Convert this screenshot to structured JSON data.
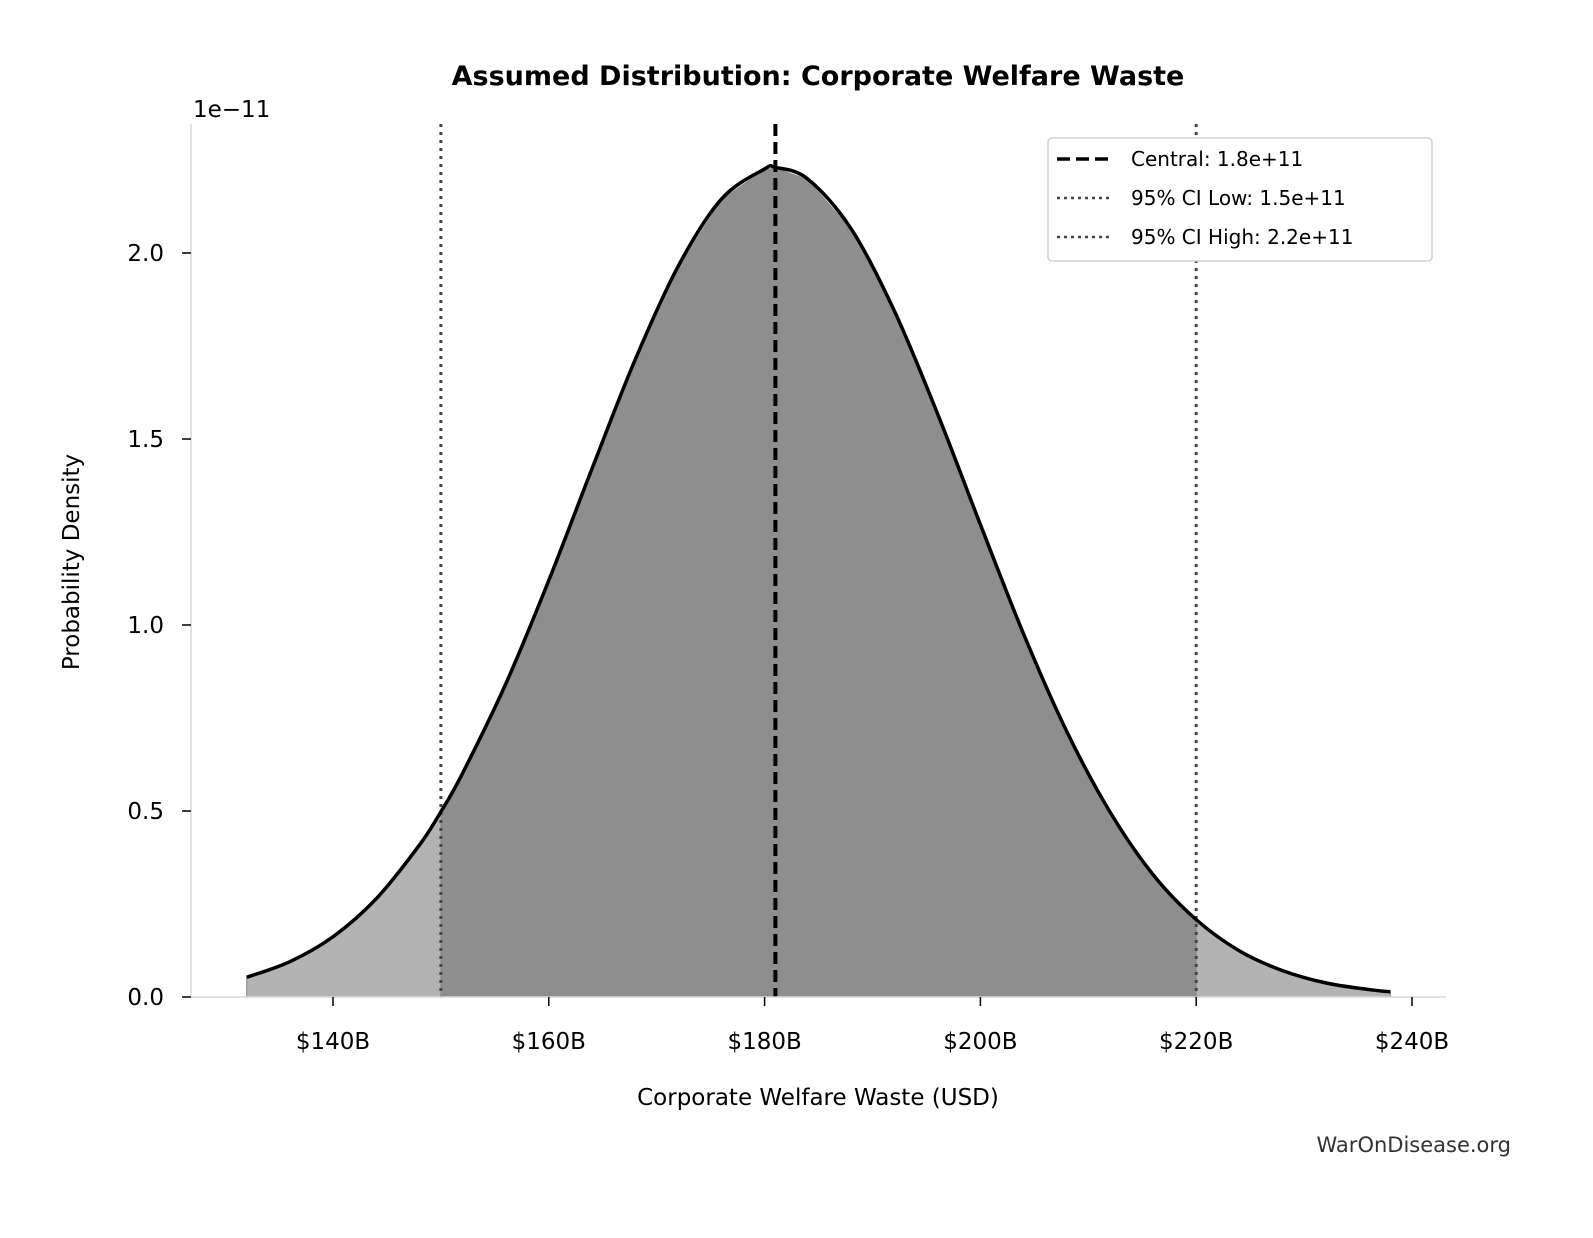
{
  "chart_data": {
    "type": "area",
    "title": "Assumed Distribution: Corporate Welfare Waste",
    "xlabel": "Corporate Welfare Waste (USD)",
    "ylabel": "Probability Density",
    "y_offset_label": "1e−11",
    "xlim": [
      128,
      244
    ],
    "ylim": [
      0,
      2.34
    ],
    "x_unit": "billion USD",
    "y_unit": "1e-11",
    "x_ticks": [
      140,
      160,
      180,
      200,
      220,
      240
    ],
    "x_tick_labels": [
      "$140B",
      "$160B",
      "$180B",
      "$200B",
      "$220B",
      "$240B"
    ],
    "y_ticks": [
      0,
      0.5,
      1.0,
      1.5,
      2.0
    ],
    "y_tick_labels": [
      "0.0",
      "0.5",
      "1.0",
      "1.5",
      "2.0"
    ],
    "grid": false,
    "legend_position": "top-right",
    "x": [
      132,
      136,
      140,
      144,
      148,
      150,
      152,
      156,
      160,
      164,
      168,
      172,
      176,
      180,
      181,
      184,
      188,
      192,
      196,
      200,
      204,
      208,
      212,
      216,
      220,
      224,
      228,
      232,
      236,
      238
    ],
    "y": [
      0.053,
      0.095,
      0.162,
      0.264,
      0.408,
      0.498,
      0.601,
      0.841,
      1.12,
      1.42,
      1.713,
      1.965,
      2.145,
      2.226,
      2.23,
      2.199,
      2.066,
      1.846,
      1.57,
      1.27,
      0.976,
      0.714,
      0.498,
      0.329,
      0.208,
      0.124,
      0.071,
      0.038,
      0.02,
      0.014
    ],
    "reference_lines": [
      {
        "name": "Central: 1.8e+11",
        "x": 181,
        "style": "dashed",
        "color": "#000000"
      },
      {
        "name": "95% CI Low: 1.5e+11",
        "x": 150,
        "style": "dotted",
        "color": "#444444"
      },
      {
        "name": "95% CI High: 2.2e+11",
        "x": 220,
        "style": "dotted",
        "color": "#444444"
      }
    ],
    "colors": {
      "curve": "#000000",
      "ci_fill": "#8e8e8e",
      "tail_fill": "#b3b3b3"
    }
  },
  "watermark": "WarOnDisease.org"
}
